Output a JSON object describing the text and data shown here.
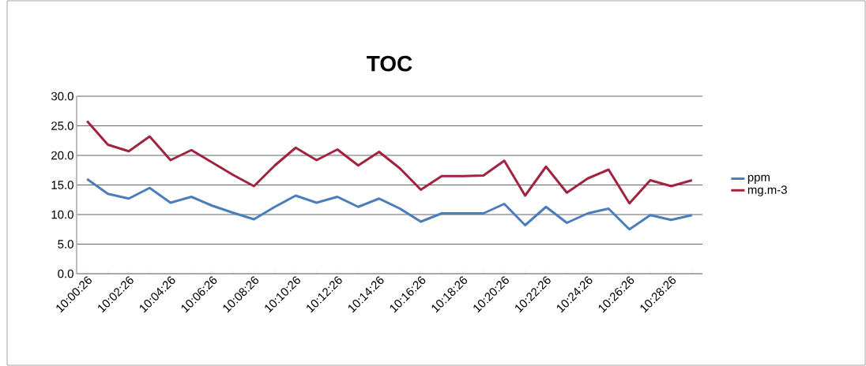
{
  "chart_data": {
    "type": "line",
    "title": "TOC",
    "categories": [
      "10:00:26",
      null,
      "10:02:26",
      null,
      "10:04:26",
      null,
      "10:06:26",
      null,
      "10:08:26",
      null,
      "10:10:26",
      null,
      "10:12:26",
      null,
      "10:14:26",
      null,
      "10:16:26",
      null,
      "10:18:26",
      null,
      "10:20:26",
      null,
      "10:22:26",
      null,
      "10:24:26",
      null,
      "10:26:26",
      null,
      "10:28:26",
      null
    ],
    "series": [
      {
        "name": "ppm",
        "color": "#4a7ebb",
        "values": [
          16.0,
          13.5,
          12.7,
          14.5,
          12.0,
          13.0,
          11.5,
          10.3,
          9.2,
          11.3,
          13.2,
          12.0,
          13.0,
          11.3,
          12.7,
          11.0,
          8.8,
          10.2,
          10.2,
          10.2,
          11.8,
          8.2,
          11.3,
          8.6,
          10.2,
          11.0,
          7.5,
          9.9,
          9.1,
          9.9
        ]
      },
      {
        "name": "mg.m-3",
        "color": "#a0233f",
        "values": [
          25.8,
          21.8,
          20.7,
          23.2,
          19.2,
          20.9,
          18.8,
          16.7,
          14.8,
          18.3,
          21.3,
          19.2,
          21.0,
          18.3,
          20.6,
          17.8,
          14.2,
          16.5,
          16.5,
          16.6,
          19.1,
          13.2,
          18.1,
          13.7,
          16.1,
          17.6,
          11.9,
          15.8,
          14.8,
          15.8
        ]
      }
    ],
    "ylim": [
      0,
      30
    ],
    "yticks": [
      {
        "value": 0,
        "label": "0.0"
      },
      {
        "value": 5,
        "label": "5.0"
      },
      {
        "value": 10,
        "label": "10.0"
      },
      {
        "value": 15,
        "label": "15.0"
      },
      {
        "value": 20,
        "label": "20.0"
      },
      {
        "value": 25,
        "label": "25.0"
      },
      {
        "value": 30,
        "label": "30.0"
      }
    ],
    "grid": "y",
    "legend": "right",
    "marker": "none",
    "line_style": "solid"
  }
}
